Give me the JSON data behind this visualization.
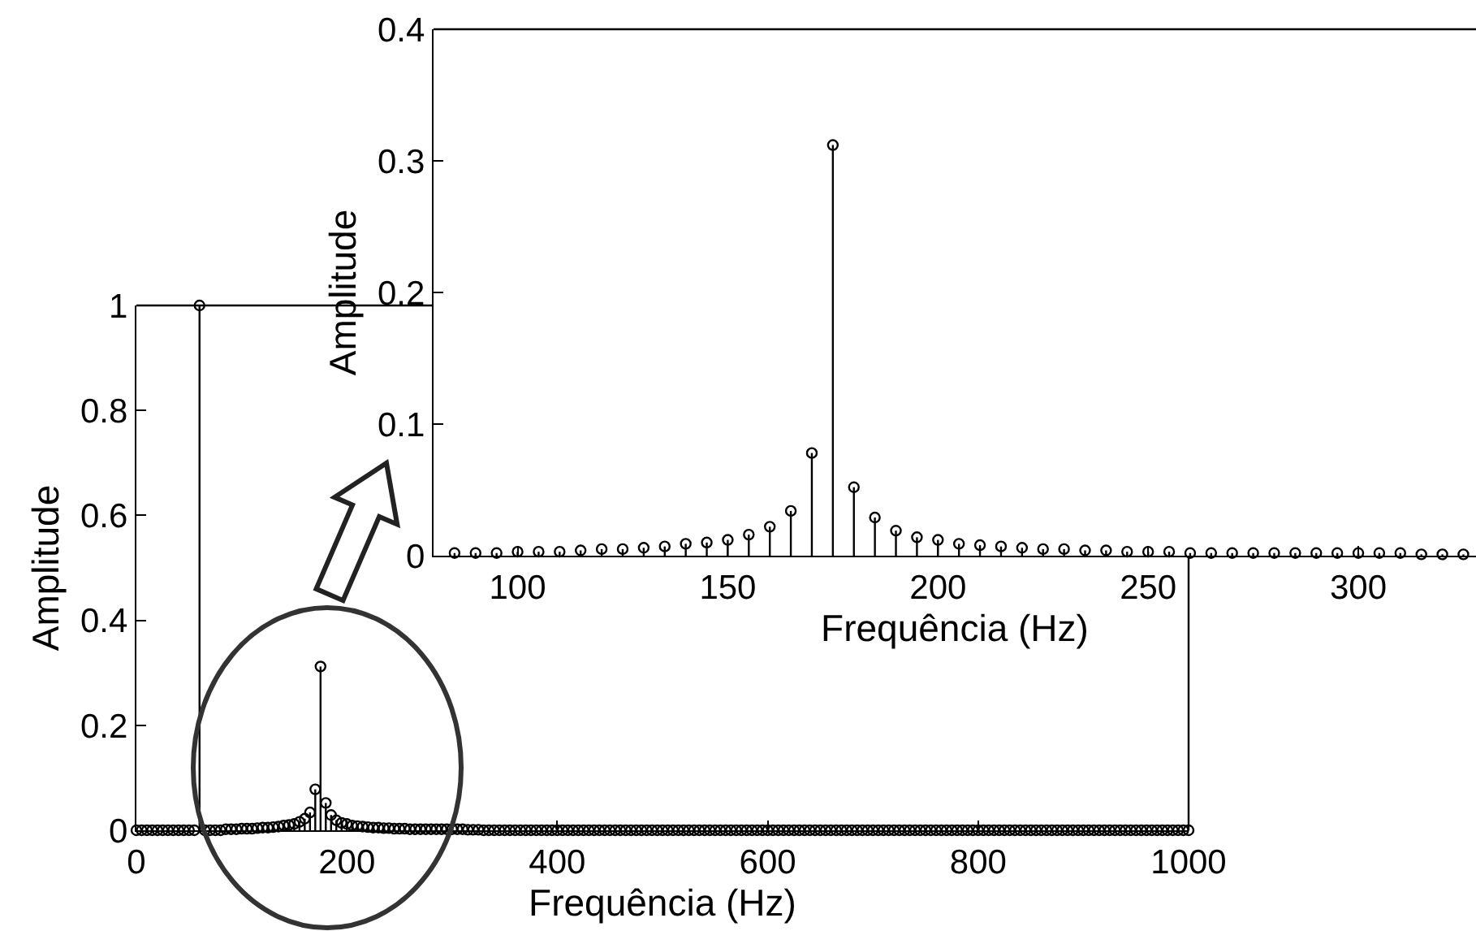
{
  "chart_data": [
    {
      "type": "lollipop",
      "xlabel": "Frequência (Hz)",
      "ylabel": "Amplitude",
      "color": "#000000",
      "marker": "circle",
      "xlim": [
        0,
        1000
      ],
      "ylim": [
        0,
        1
      ],
      "xticks": [
        0,
        200,
        400,
        600,
        800,
        1000
      ],
      "yticks": [
        0,
        0.2,
        0.4,
        0.6,
        0.8,
        1
      ],
      "x": [
        0,
        5,
        10,
        15,
        20,
        25,
        30,
        35,
        40,
        45,
        50,
        55,
        60,
        65,
        70,
        75,
        80,
        85,
        90,
        95,
        100,
        105,
        110,
        115,
        120,
        125,
        130,
        135,
        140,
        145,
        150,
        155,
        160,
        165,
        170,
        175,
        180,
        185,
        190,
        195,
        200,
        205,
        210,
        215,
        220,
        225,
        230,
        235,
        240,
        245,
        250,
        255,
        260,
        265,
        270,
        275,
        280,
        285,
        290,
        295,
        300,
        305,
        310,
        315,
        320,
        325,
        330,
        335,
        340,
        345,
        350,
        355,
        360,
        365,
        370,
        375,
        380,
        385,
        390,
        395,
        400,
        405,
        410,
        415,
        420,
        425,
        430,
        435,
        440,
        445,
        450,
        455,
        460,
        465,
        470,
        475,
        480,
        485,
        490,
        495,
        500,
        505,
        510,
        515,
        520,
        525,
        530,
        535,
        540,
        545,
        550,
        555,
        560,
        565,
        570,
        575,
        580,
        585,
        590,
        595,
        600,
        605,
        610,
        615,
        620,
        625,
        630,
        635,
        640,
        645,
        650,
        655,
        660,
        665,
        670,
        675,
        680,
        685,
        690,
        695,
        700,
        705,
        710,
        715,
        720,
        725,
        730,
        735,
        740,
        745,
        750,
        755,
        760,
        765,
        770,
        775,
        780,
        785,
        790,
        795,
        800,
        805,
        810,
        815,
        820,
        825,
        830,
        835,
        840,
        845,
        850,
        855,
        860,
        865,
        870,
        875,
        880,
        885,
        890,
        895,
        900,
        905,
        910,
        915,
        920,
        925,
        930,
        935,
        940,
        945,
        950,
        955,
        960,
        965,
        970,
        975,
        980,
        985,
        990,
        995,
        1000
      ],
      "values": [
        0,
        0,
        0,
        0,
        0,
        0,
        0,
        0,
        0,
        0,
        0,
        0,
        1,
        0,
        0,
        0,
        0,
        0.002,
        0.002,
        0.002,
        0.003,
        0.003,
        0.003,
        0.004,
        0.005,
        0.005,
        0.006,
        0.007,
        0.009,
        0.01,
        0.012,
        0.016,
        0.022,
        0.034,
        0.078,
        0.312,
        0.052,
        0.029,
        0.019,
        0.014,
        0.012,
        0.009,
        0.008,
        0.007,
        0.006,
        0.005,
        0.005,
        0.004,
        0.004,
        0.003,
        0.003,
        0.003,
        0.002,
        0.002,
        0.002,
        0.002,
        0.002,
        0.002,
        0.002,
        0.002,
        0.002,
        0.002,
        0.002,
        0.001,
        0.001,
        0.001,
        0,
        0,
        0,
        0,
        0,
        0,
        0,
        0,
        0,
        0,
        0,
        0,
        0,
        0,
        0,
        0,
        0,
        0,
        0,
        0,
        0,
        0,
        0,
        0,
        0,
        0,
        0,
        0,
        0,
        0,
        0,
        0,
        0,
        0,
        0,
        0,
        0,
        0,
        0,
        0,
        0,
        0,
        0,
        0,
        0,
        0,
        0,
        0,
        0,
        0,
        0,
        0,
        0,
        0,
        0,
        0,
        0,
        0,
        0,
        0,
        0,
        0,
        0,
        0,
        0,
        0,
        0,
        0,
        0,
        0,
        0,
        0,
        0,
        0,
        0,
        0,
        0,
        0,
        0,
        0,
        0,
        0,
        0,
        0,
        0,
        0,
        0,
        0,
        0,
        0,
        0,
        0,
        0,
        0,
        0,
        0,
        0,
        0,
        0,
        0,
        0,
        0,
        0,
        0,
        0,
        0,
        0,
        0,
        0,
        0,
        0,
        0,
        0,
        0,
        0,
        0,
        0,
        0,
        0,
        0,
        0,
        0,
        0,
        0,
        0,
        0,
        0,
        0,
        0,
        0,
        0,
        0,
        0,
        0,
        0
      ]
    },
    {
      "type": "lollipop",
      "xlabel": "Frequência (Hz)",
      "ylabel": "Amplitude",
      "color": "#000000",
      "marker": "circle",
      "xlim": [
        80,
        328
      ],
      "ylim": [
        0,
        0.4
      ],
      "xticks": [
        100,
        150,
        200,
        250,
        300
      ],
      "yticks": [
        0,
        0.1,
        0.2,
        0.3,
        0.4
      ],
      "x": [
        85,
        90,
        95,
        100,
        105,
        110,
        115,
        120,
        125,
        130,
        135,
        140,
        145,
        150,
        155,
        160,
        165,
        170,
        175,
        180,
        185,
        190,
        195,
        200,
        205,
        210,
        215,
        220,
        225,
        230,
        235,
        240,
        245,
        250,
        255,
        260,
        265,
        270,
        275,
        280,
        285,
        290,
        295,
        300,
        305,
        310,
        315,
        320,
        325
      ],
      "values": [
        0.002,
        0.002,
        0.002,
        0.003,
        0.003,
        0.003,
        0.004,
        0.005,
        0.005,
        0.006,
        0.007,
        0.009,
        0.01,
        0.012,
        0.016,
        0.022,
        0.034,
        0.078,
        0.312,
        0.052,
        0.029,
        0.019,
        0.014,
        0.012,
        0.009,
        0.008,
        0.007,
        0.006,
        0.005,
        0.005,
        0.004,
        0.004,
        0.003,
        0.003,
        0.003,
        0.002,
        0.002,
        0.002,
        0.002,
        0.002,
        0.002,
        0.002,
        0.002,
        0.002,
        0.002,
        0.002,
        0.001,
        0.001,
        0.001
      ]
    }
  ]
}
